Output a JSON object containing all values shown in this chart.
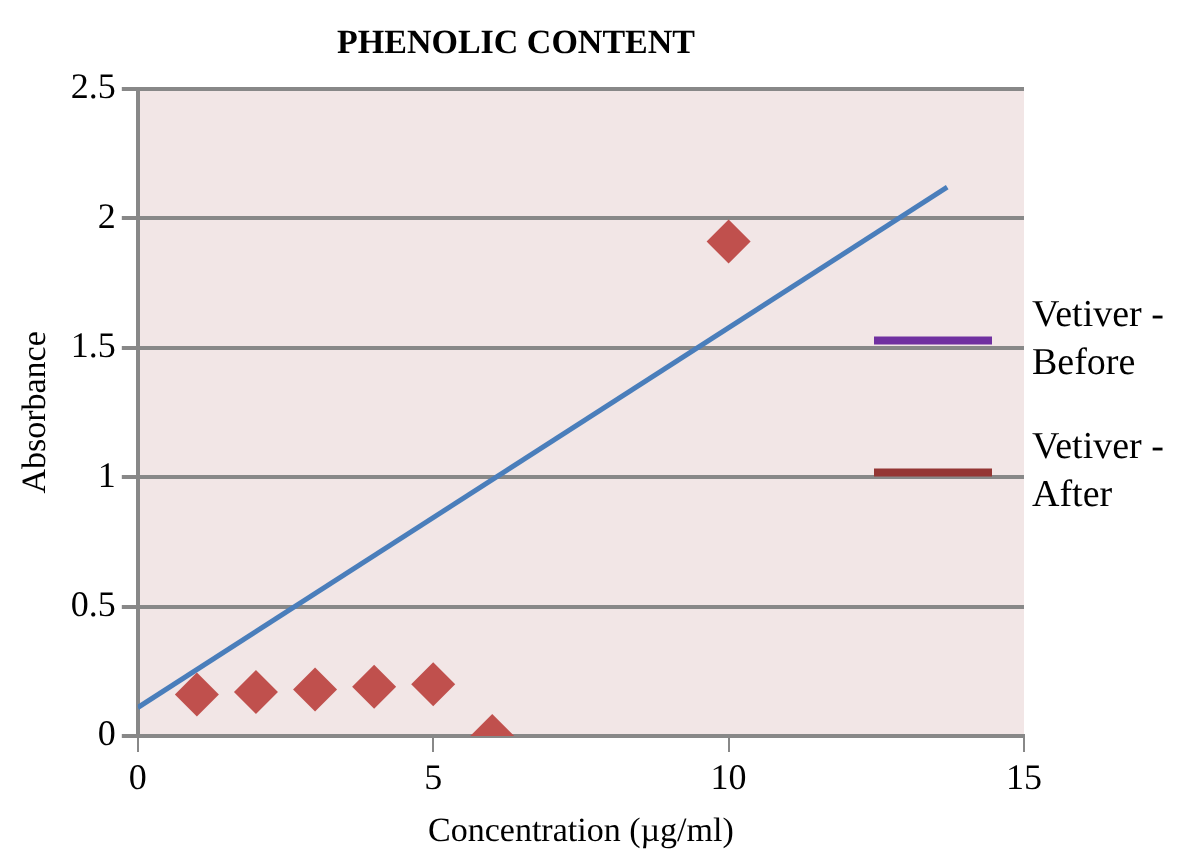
{
  "chart_data": {
    "type": "scatter",
    "title": "PHENOLIC CONTENT",
    "xlabel": "Concentration (µg/ml)",
    "ylabel": "Absorbance",
    "xlim": [
      0,
      15
    ],
    "xticks": [
      0,
      5,
      10,
      15
    ],
    "ylim": [
      0,
      2.5
    ],
    "yticks": [
      0,
      0.5,
      1,
      1.5,
      2,
      2.5
    ],
    "grid": "y",
    "legend": "right",
    "series": [
      {
        "color": "#c0504d",
        "marker": "diamond",
        "x": [
          1,
          2,
          3,
          4,
          5,
          6,
          10
        ],
        "values": [
          0.16,
          0.17,
          0.18,
          0.19,
          0.2,
          0.0,
          1.91
        ]
      },
      {
        "type": "line",
        "color": "#4a7ebb",
        "marker": "none",
        "x": [
          0,
          13.7
        ],
        "values": [
          0.11,
          2.12
        ]
      },
      {
        "type": "line",
        "name": "Vetiver - Before",
        "color": "#7030a0"
      },
      {
        "type": "line",
        "name": "Vetiver - After",
        "color": "#943634"
      }
    ]
  }
}
